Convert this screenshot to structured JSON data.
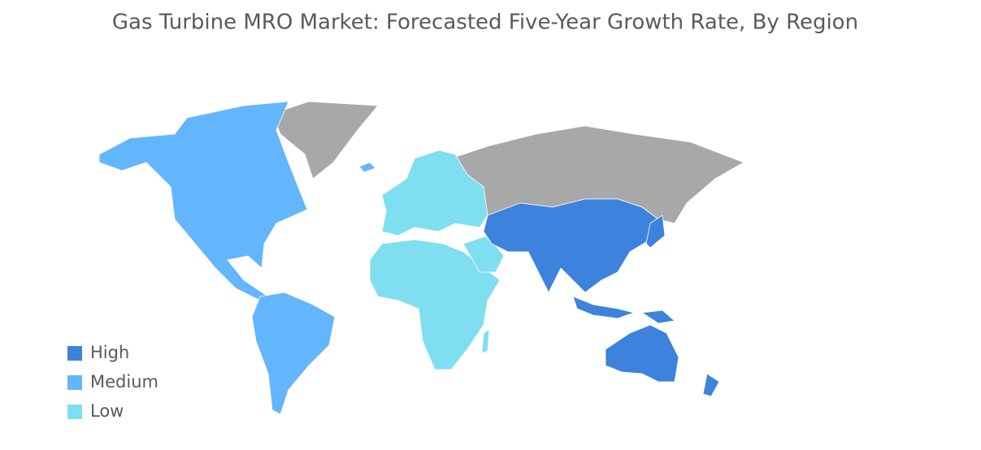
{
  "title": "Gas Turbine MRO Market: Forecasted Five-Year Growth Rate, By Region",
  "legend": [
    {
      "label": "High",
      "color": "#3d82dc"
    },
    {
      "label": "Medium",
      "color": "#64b6fc"
    },
    {
      "label": "Low",
      "color": "#7fdff0"
    }
  ]
}
